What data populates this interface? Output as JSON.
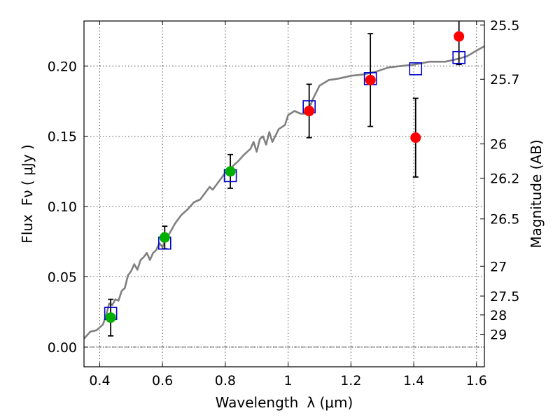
{
  "chart_data": {
    "type": "scatter",
    "title": "",
    "xlabel": "Wavelength",
    "xlabel_symbol": "λ (μm)",
    "ylabel": "Flux",
    "ylabel_symbol": "Fν ( μJy )",
    "y2label": "Magnitude (AB)",
    "xlim": [
      0.35,
      1.625
    ],
    "ylim": [
      -0.014,
      0.232
    ],
    "x_ticks": [
      0.4,
      0.6,
      0.8,
      1.0,
      1.2,
      1.4,
      1.6
    ],
    "x_tick_labels": [
      "0.4",
      "0.6",
      "0.8",
      "1",
      "1.2",
      "1.4",
      "1.6"
    ],
    "y_ticks": [
      0.0,
      0.05,
      0.1,
      0.15,
      0.2
    ],
    "y_tick_labels": [
      "0.00",
      "0.05",
      "0.10",
      "0.15",
      "0.20"
    ],
    "mag_ticks": [
      "25.5",
      "25.7",
      "26",
      "26.2",
      "26.5",
      "27",
      "27.5",
      "28",
      "29"
    ],
    "grid": true,
    "zero_line": true,
    "colors": {
      "model": "#808080",
      "template": "#0000cc",
      "optical": "#00b000",
      "nir": "#ff0000",
      "errorbar": "#000000"
    },
    "series": [
      {
        "marker": "line",
        "x": [
          0.35,
          0.37,
          0.39,
          0.41,
          0.42,
          0.43,
          0.44,
          0.45,
          0.46,
          0.47,
          0.48,
          0.49,
          0.5,
          0.51,
          0.52,
          0.53,
          0.54,
          0.55,
          0.56,
          0.57,
          0.58,
          0.59,
          0.6,
          0.61,
          0.62,
          0.63,
          0.64,
          0.65,
          0.66,
          0.67,
          0.68,
          0.7,
          0.72,
          0.74,
          0.75,
          0.76,
          0.78,
          0.8,
          0.81,
          0.82,
          0.84,
          0.86,
          0.88,
          0.89,
          0.9,
          0.91,
          0.92,
          0.93,
          0.94,
          0.95,
          0.97,
          0.99,
          1.0,
          1.02,
          1.04,
          1.06,
          1.08,
          1.1,
          1.13,
          1.16,
          1.2,
          1.24,
          1.28,
          1.32,
          1.36,
          1.4,
          1.45,
          1.5,
          1.54,
          1.57,
          1.6,
          1.625
        ],
        "y": [
          0.006,
          0.011,
          0.012,
          0.016,
          0.022,
          0.031,
          0.03,
          0.034,
          0.033,
          0.04,
          0.042,
          0.051,
          0.054,
          0.059,
          0.055,
          0.062,
          0.064,
          0.067,
          0.062,
          0.067,
          0.069,
          0.074,
          0.071,
          0.077,
          0.08,
          0.084,
          0.088,
          0.091,
          0.094,
          0.096,
          0.098,
          0.103,
          0.105,
          0.111,
          0.114,
          0.112,
          0.118,
          0.124,
          0.123,
          0.128,
          0.132,
          0.137,
          0.141,
          0.146,
          0.139,
          0.148,
          0.15,
          0.144,
          0.153,
          0.146,
          0.155,
          0.158,
          0.165,
          0.168,
          0.166,
          0.166,
          0.177,
          0.186,
          0.19,
          0.191,
          0.193,
          0.194,
          0.196,
          0.199,
          0.2,
          0.201,
          0.203,
          0.203,
          0.205,
          0.207,
          0.211,
          0.214
        ]
      },
      {
        "marker": "open-square",
        "x": [
          0.435,
          0.607,
          0.816,
          1.067,
          1.262,
          1.406,
          1.544
        ],
        "y": [
          0.024,
          0.074,
          0.122,
          0.171,
          0.191,
          0.198,
          0.206
        ]
      },
      {
        "marker": "filled-circle",
        "x": [
          0.435,
          0.607,
          0.816
        ],
        "y": [
          0.021,
          0.078,
          0.125
        ],
        "yerr": [
          0.013,
          0.008,
          0.012
        ]
      },
      {
        "marker": "filled-circle",
        "x": [
          1.067,
          1.262,
          1.406,
          1.544
        ],
        "y": [
          0.168,
          0.19,
          0.149,
          0.221
        ],
        "yerr": [
          0.019,
          0.033,
          0.028,
          0.02
        ]
      }
    ]
  }
}
